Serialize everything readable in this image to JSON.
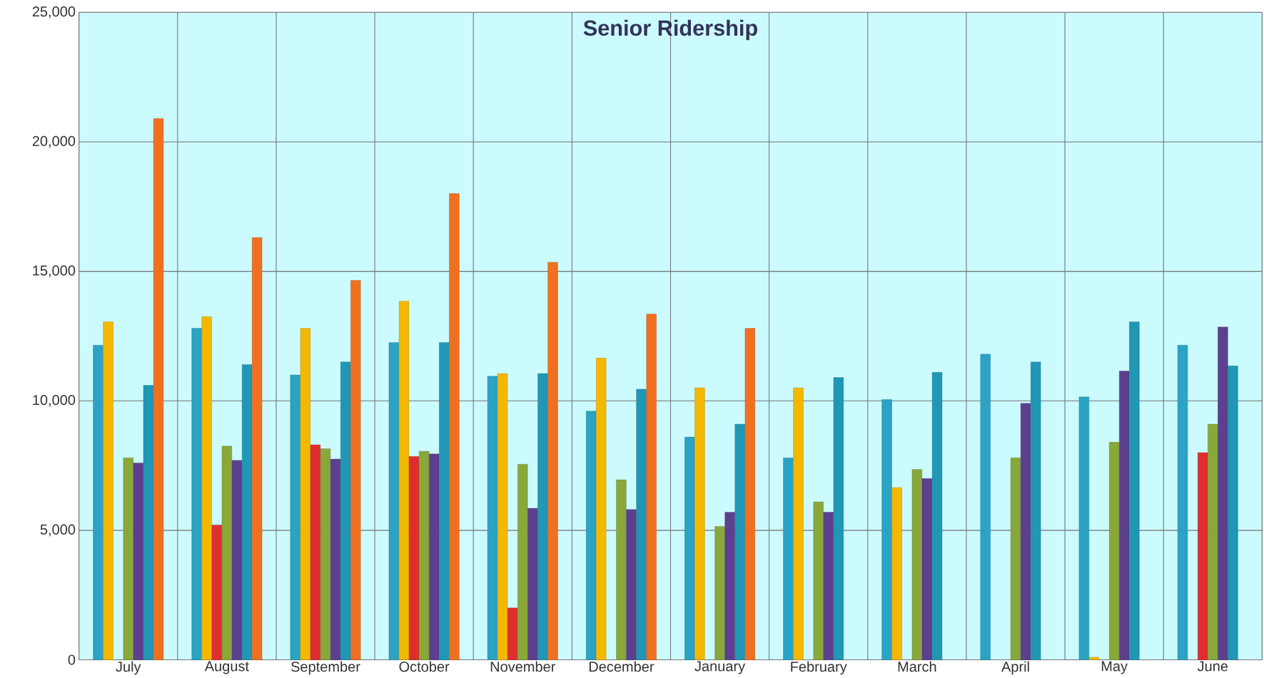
{
  "chart_data": {
    "type": "bar",
    "title": "Senior Ridership",
    "categories": [
      "July",
      "August",
      "September",
      "October",
      "November",
      "December",
      "January",
      "February",
      "March",
      "April",
      "May",
      "June"
    ],
    "series": [
      {
        "color": "#2aa3c4",
        "values": [
          12150,
          12800,
          11000,
          12250,
          10950,
          9600,
          8600,
          7800,
          10050,
          11800,
          10150,
          12150
        ]
      },
      {
        "color": "#f5b800",
        "values": [
          13050,
          13250,
          12800,
          13850,
          11050,
          11650,
          10500,
          10500,
          6650,
          null,
          100,
          null
        ]
      },
      {
        "color": "#e02e2e",
        "values": [
          null,
          5200,
          8300,
          7850,
          2000,
          null,
          null,
          null,
          null,
          null,
          null,
          8000
        ]
      },
      {
        "color": "#8aa83a",
        "values": [
          7800,
          8250,
          8150,
          8050,
          7550,
          6950,
          5150,
          6100,
          7350,
          7800,
          8400,
          9100
        ]
      },
      {
        "color": "#5c3f8f",
        "values": [
          7600,
          7700,
          7750,
          7950,
          5850,
          5800,
          5700,
          5700,
          7000,
          9900,
          11150,
          12850
        ]
      },
      {
        "color": "#1f97b5",
        "values": [
          10600,
          11400,
          11500,
          12250,
          11050,
          10450,
          9100,
          10900,
          11100,
          11500,
          13050,
          11350
        ]
      },
      {
        "color": "#f07020",
        "values": [
          20900,
          16300,
          14650,
          18000,
          15350,
          13350,
          12800,
          null,
          null,
          null,
          null,
          null
        ]
      }
    ],
    "ylim": [
      0,
      25000
    ],
    "yticks": [
      {
        "value": 0,
        "label": "0"
      },
      {
        "value": 5000,
        "label": "5,000"
      },
      {
        "value": 10000,
        "label": "10,000"
      },
      {
        "value": 15000,
        "label": "15,000"
      },
      {
        "value": 20000,
        "label": "20,000"
      },
      {
        "value": 25000,
        "label": "25,000"
      }
    ],
    "grid": true
  }
}
